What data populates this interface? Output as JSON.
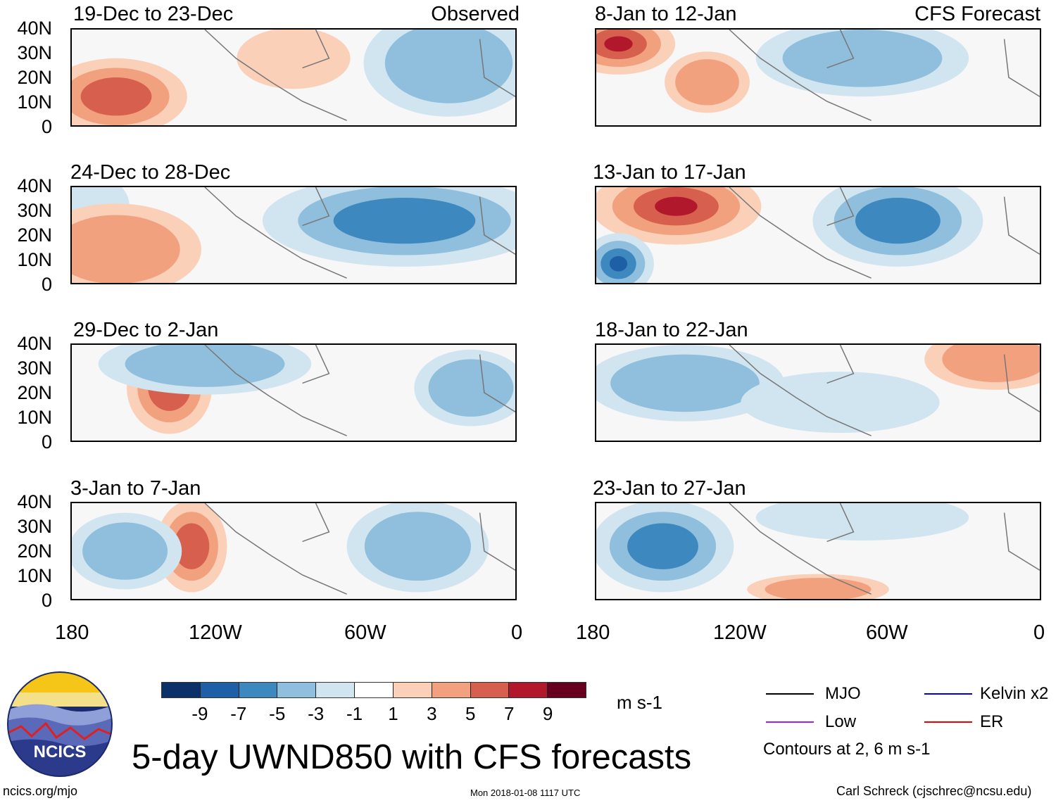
{
  "header": {
    "left_label": "Observed",
    "right_label": "CFS Forecast"
  },
  "columns": [
    {
      "panels": [
        {
          "title": "19-Dec to 23-Dec"
        },
        {
          "title": "24-Dec to 28-Dec"
        },
        {
          "title": "29-Dec to 2-Jan"
        },
        {
          "title": "3-Jan to 7-Jan"
        }
      ]
    },
    {
      "panels": [
        {
          "title": "8-Jan to 12-Jan"
        },
        {
          "title": "13-Jan to 17-Jan"
        },
        {
          "title": "18-Jan to 22-Jan"
        },
        {
          "title": "23-Jan to 27-Jan"
        }
      ]
    }
  ],
  "axes": {
    "y_ticks": [
      "40N",
      "30N",
      "20N",
      "10N",
      "0"
    ],
    "x_ticks": [
      "180",
      "120W",
      "60W",
      "0"
    ]
  },
  "colorbar": {
    "labels": [
      "-9",
      "-7",
      "-5",
      "-3",
      "-1",
      "1",
      "3",
      "5",
      "7",
      "9"
    ],
    "colors": [
      "#0b3268",
      "#1f5fa5",
      "#3e88c0",
      "#8fbfdc",
      "#d1e5f0",
      "#ffffff",
      "#fbd0b9",
      "#f2a17f",
      "#d6604d",
      "#b2182b",
      "#67001f"
    ],
    "units": "m s-1"
  },
  "legend": {
    "items": [
      {
        "label": "MJO",
        "color": "#000000"
      },
      {
        "label": "Kelvin x2",
        "color": "#0000ee"
      },
      {
        "label": "Low",
        "color": "#a020f0"
      },
      {
        "label": "ER",
        "color": "#ee0000"
      }
    ],
    "note": "Contours at 2, 6 m s-1"
  },
  "logo": {
    "text": "NCICS"
  },
  "title": "5-day UWND850 with CFS forecasts",
  "footer": {
    "left": "ncics.org/mjo",
    "center": "Mon 2018-01-08 1117 UTC",
    "right": "Carl Schreck (cjschrec@ncsu.edu)"
  }
}
